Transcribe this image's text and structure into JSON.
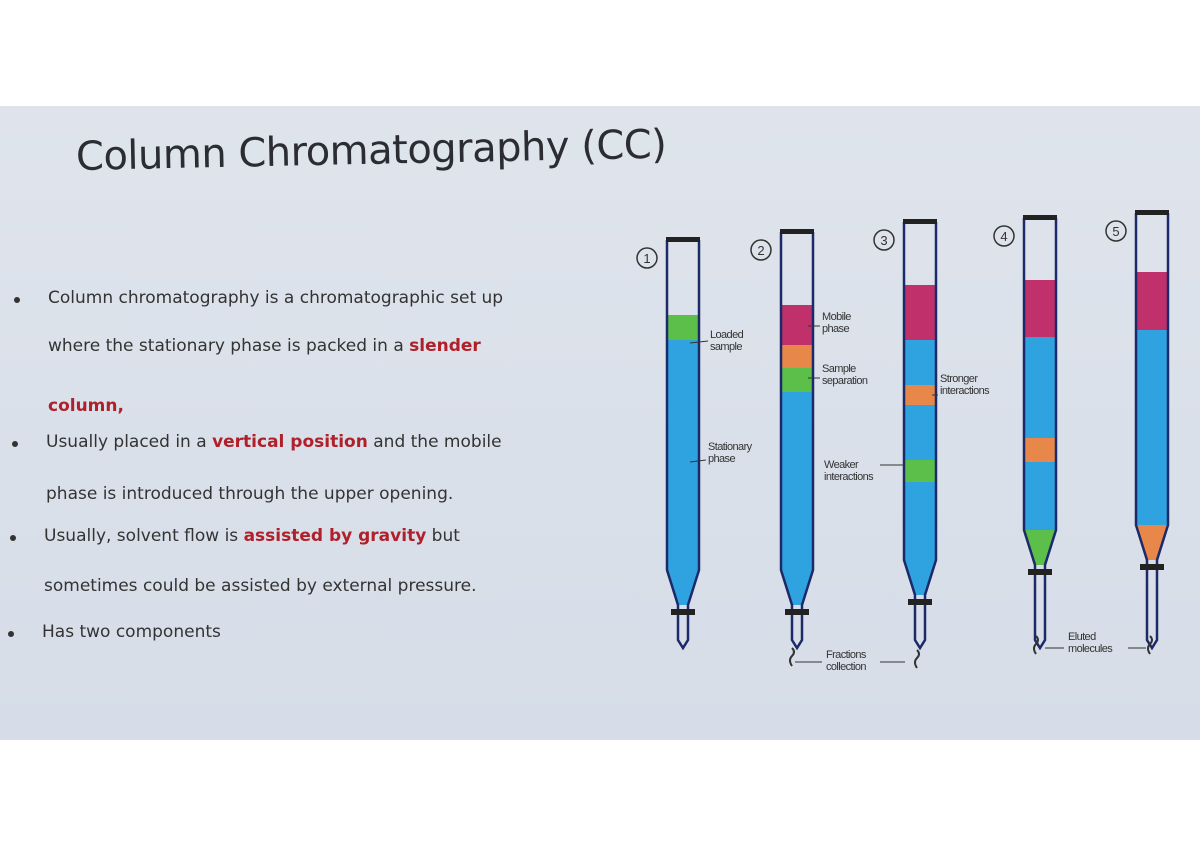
{
  "slide": {
    "title": "Column Chromatography (CC)",
    "bullets": [
      {
        "lines": [
          [
            {
              "t": "Column chromatography is a chromatographic set up"
            }
          ],
          [
            {
              "t": "where the stationary phase is packed in a "
            },
            {
              "t": "slender",
              "hl": true
            }
          ],
          [
            {
              "t": "column,",
              "hl": true
            }
          ]
        ]
      },
      {
        "lines": [
          [
            {
              "t": "Usually placed in a "
            },
            {
              "t": "vertical position",
              "hl": true
            },
            {
              "t": " and the mobile"
            }
          ],
          [
            {
              "t": "phase is introduced through the upper opening."
            }
          ]
        ]
      },
      {
        "lines": [
          [
            {
              "t": "Usually, solvent flow is "
            },
            {
              "t": "assisted by gravity",
              "hl": true
            },
            {
              "t": " but"
            }
          ],
          [
            {
              "t": "sometimes could be assisted by external pressure."
            }
          ]
        ]
      },
      {
        "lines": [
          [
            {
              "t": "Has two components"
            }
          ]
        ]
      }
    ],
    "highlight_color": "#b0202a"
  },
  "diagram": {
    "step_numbers": [
      "1",
      "2",
      "3",
      "4",
      "5"
    ],
    "labels": {
      "loaded_sample": [
        "Loaded",
        "sample"
      ],
      "stationary_phase": [
        "Stationary",
        "phase"
      ],
      "mobile_phase": [
        "Mobile",
        "phase"
      ],
      "sample_separation": [
        "Sample",
        "separation"
      ],
      "weaker_interactions": [
        "Weaker",
        "interactions"
      ],
      "stronger_interactions": [
        "Stronger",
        "interactions"
      ],
      "fractions_collection": [
        "Fractions",
        "collection"
      ],
      "eluted_molecules": [
        "Eluted",
        "molecules"
      ]
    },
    "colors": {
      "stationary": "#2fa3e0",
      "mobile": "#c0306a",
      "sample_a": "#e8874a",
      "sample_b": "#5cbf4a",
      "outline": "#1c2a6a"
    }
  }
}
